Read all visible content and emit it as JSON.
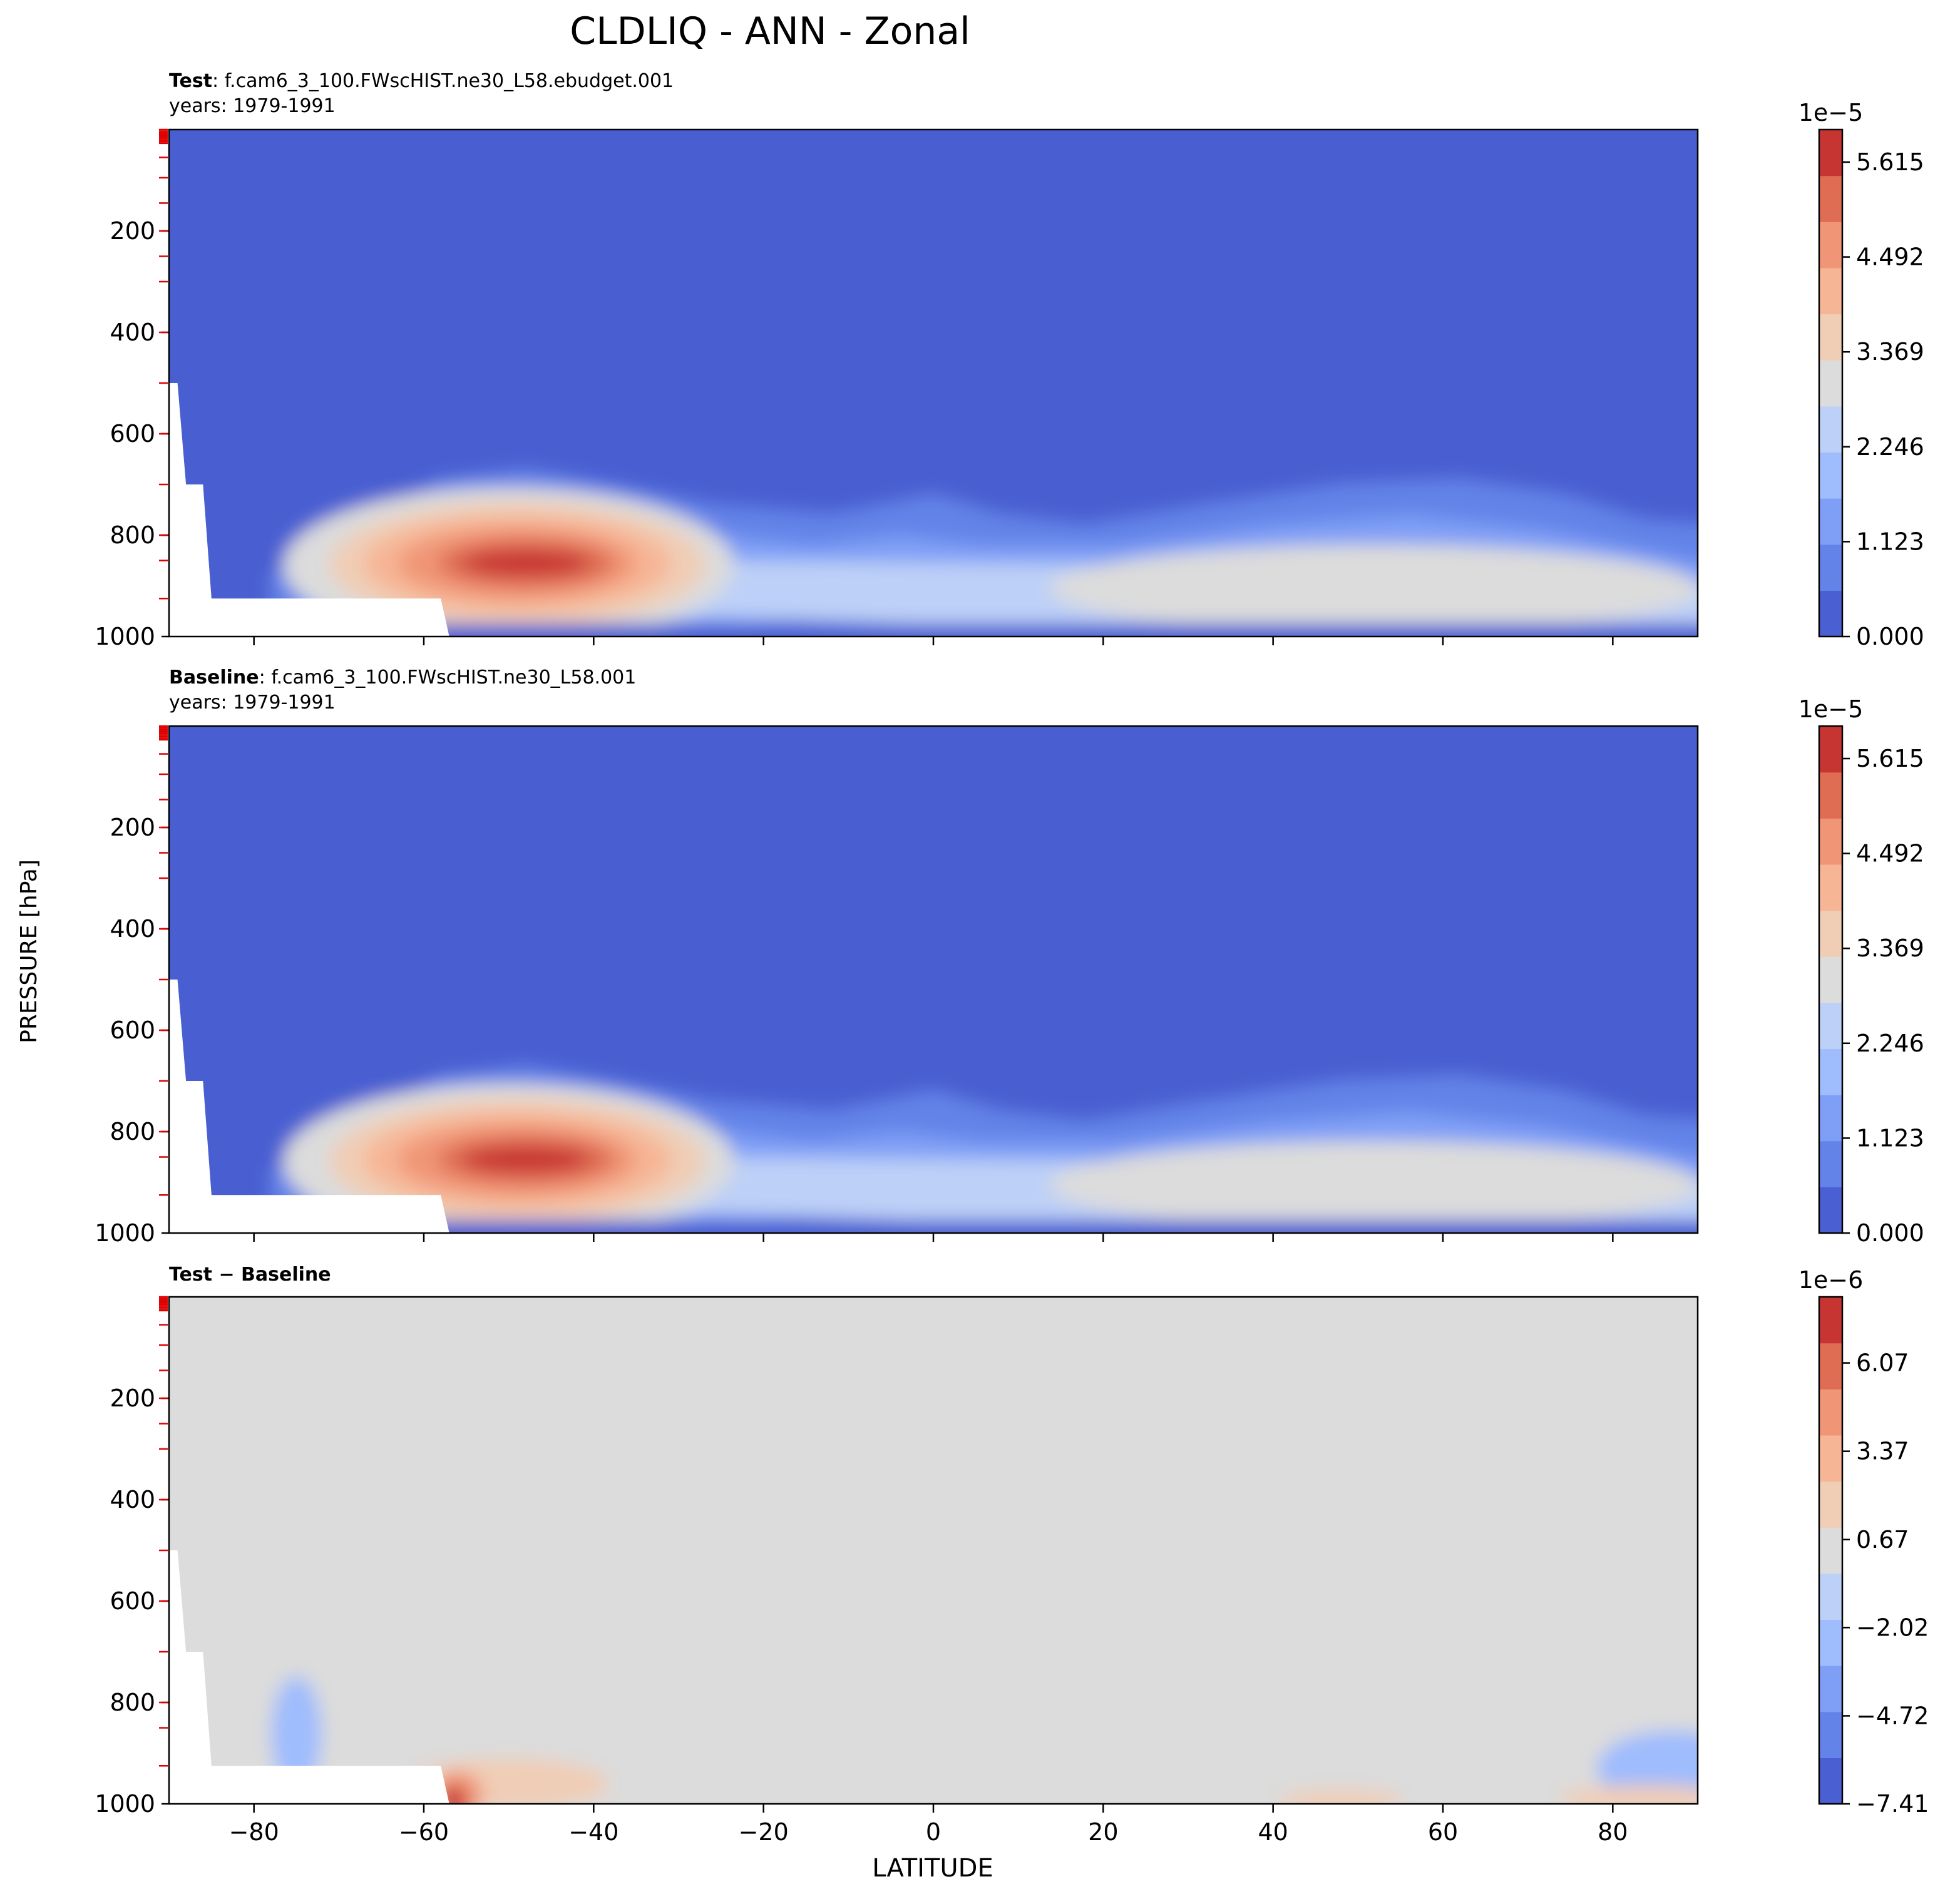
{
  "figure": {
    "title": "CLDLIQ - ANN - Zonal",
    "ylabel": "PRESSURE [hPa]",
    "xlabel": "LATITUDE"
  },
  "chart_data": [
    {
      "type": "heatmap",
      "panel": "test",
      "label_bold": "Test",
      "label_rest": ": f.cam6_3_100.FWscHIST.ne30_L58.ebudget.001",
      "years": "years: 1979-1991",
      "x": {
        "label": "",
        "lim": [
          -90,
          90
        ],
        "ticks": [
          -80,
          -60,
          -40,
          -20,
          0,
          20,
          40,
          60,
          80
        ],
        "ticklabels_shown": false
      },
      "y": {
        "label": "",
        "lim": [
          1000,
          0
        ],
        "ticks": [
          200,
          400,
          600,
          800,
          1000
        ],
        "ticklabels": [
          "200",
          "400",
          "600",
          "800",
          "1000"
        ]
      },
      "colormap": "coolwarm",
      "colorbar": {
        "offset_label": "1e−5",
        "ticklabels": [
          "0.000",
          "1.123",
          "2.246",
          "3.369",
          "4.492",
          "5.615"
        ],
        "tick_values": [
          0.0,
          1.123,
          2.246,
          3.369,
          4.492,
          5.615
        ],
        "range": [
          0.0,
          6.0
        ],
        "colors": [
          "#4a5fd1",
          "#6483e8",
          "#7f9ff6",
          "#9fbcfd",
          "#bdd0f7",
          "#dcdcdc",
          "#f0cdb5",
          "#f6b595",
          "#f09677",
          "#df6d54",
          "#c73532"
        ]
      },
      "features": {
        "max_center": {
          "lat": -48,
          "pressure": 855,
          "value": 6.0
        },
        "southern_ocean_band": {
          "lat_range": [
            -73,
            -22
          ],
          "pressure_range": [
            650,
            1000
          ]
        },
        "northern_band": {
          "lat_range": [
            -8,
            90
          ],
          "pressure_range": [
            680,
            1000
          ],
          "max_value": 3.5
        }
      }
    },
    {
      "type": "heatmap",
      "panel": "baseline",
      "label_bold": "Baseline",
      "label_rest": ": f.cam6_3_100.FWscHIST.ne30_L58.001",
      "years": "years: 1979-1991",
      "x": {
        "label": "",
        "lim": [
          -90,
          90
        ],
        "ticks": [
          -80,
          -60,
          -40,
          -20,
          0,
          20,
          40,
          60,
          80
        ],
        "ticklabels_shown": false
      },
      "y": {
        "label": "",
        "lim": [
          1000,
          0
        ],
        "ticks": [
          200,
          400,
          600,
          800,
          1000
        ],
        "ticklabels": [
          "200",
          "400",
          "600",
          "800",
          "1000"
        ]
      },
      "colormap": "coolwarm",
      "colorbar": {
        "offset_label": "1e−5",
        "ticklabels": [
          "0.000",
          "1.123",
          "2.246",
          "3.369",
          "4.492",
          "5.615"
        ],
        "tick_values": [
          0.0,
          1.123,
          2.246,
          3.369,
          4.492,
          5.615
        ],
        "range": [
          0.0,
          6.0
        ],
        "colors": [
          "#4a5fd1",
          "#6483e8",
          "#7f9ff6",
          "#9fbcfd",
          "#bdd0f7",
          "#dcdcdc",
          "#f0cdb5",
          "#f6b595",
          "#f09677",
          "#df6d54",
          "#c73532"
        ]
      },
      "features": {
        "max_center": {
          "lat": -48,
          "pressure": 855,
          "value": 6.0
        },
        "southern_ocean_band": {
          "lat_range": [
            -73,
            -22
          ],
          "pressure_range": [
            650,
            1000
          ]
        },
        "northern_band": {
          "lat_range": [
            -8,
            90
          ],
          "pressure_range": [
            680,
            1000
          ],
          "max_value": 3.5
        }
      }
    },
    {
      "type": "heatmap",
      "panel": "difference",
      "label_bold": "Test − Baseline",
      "x": {
        "label": "LATITUDE",
        "lim": [
          -90,
          90
        ],
        "ticks": [
          -80,
          -60,
          -40,
          -20,
          0,
          20,
          40,
          60,
          80
        ],
        "ticklabels": [
          "−80",
          "−60",
          "−40",
          "−20",
          "0",
          "20",
          "40",
          "60",
          "80"
        ]
      },
      "y": {
        "label": "",
        "lim": [
          1000,
          0
        ],
        "ticks": [
          200,
          400,
          600,
          800,
          1000
        ],
        "ticklabels": [
          "200",
          "400",
          "600",
          "800",
          "1000"
        ]
      },
      "colormap": "coolwarm",
      "colorbar": {
        "offset_label": "1e−6",
        "ticklabels": [
          "−7.41",
          "−4.72",
          "−2.02",
          "0.67",
          "3.37",
          "6.07"
        ],
        "tick_values": [
          -7.41,
          -4.72,
          -2.02,
          0.67,
          3.37,
          6.07
        ],
        "range": [
          -7.41,
          8.09
        ],
        "colors": [
          "#4a5fd1",
          "#6483e8",
          "#7f9ff6",
          "#9fbcfd",
          "#bdd0f7",
          "#dcdcdc",
          "#f0cdb5",
          "#f6b595",
          "#f09677",
          "#df6d54",
          "#c73532"
        ]
      },
      "features": {
        "background_value": 0.0,
        "positive_spot": {
          "lat": -57,
          "pressure": 980,
          "value": 7.0
        },
        "negative_patches": [
          {
            "lat": -75,
            "pressure": 850
          },
          {
            "lat": 87,
            "pressure": 920
          }
        ]
      }
    }
  ]
}
